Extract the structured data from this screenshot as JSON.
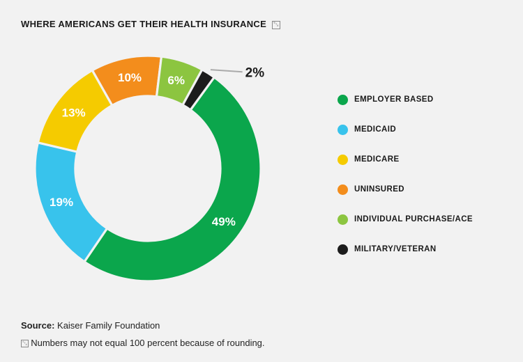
{
  "chart_data": {
    "type": "pie",
    "title": "WHERE AMERICANS GET THEIR HEALTH INSURANCE",
    "title_mark": "␂",
    "categories": [
      "EMPLOYER BASED",
      "MEDICAID",
      "MEDICARE",
      "UNINSURED",
      "INDIVIDUAL PURCHASE/ACE",
      "MILITARY/VETERAN"
    ],
    "values": [
      49,
      19,
      13,
      10,
      6,
      2
    ],
    "data_labels": [
      "49%",
      "19%",
      "13%",
      "10%",
      "6%",
      "2%"
    ],
    "colors": [
      "#0ba64c",
      "#38c3ec",
      "#f5cb00",
      "#f38d1c",
      "#8cc540",
      "#1c1c1c"
    ],
    "legend_placement": "right",
    "hole": "donut"
  },
  "footer": {
    "source_label": "Source:",
    "source_text": " Kaiser Family Foundation",
    "note_mark": "␂",
    "note_text": "Numbers may not equal 100 percent because of rounding."
  }
}
